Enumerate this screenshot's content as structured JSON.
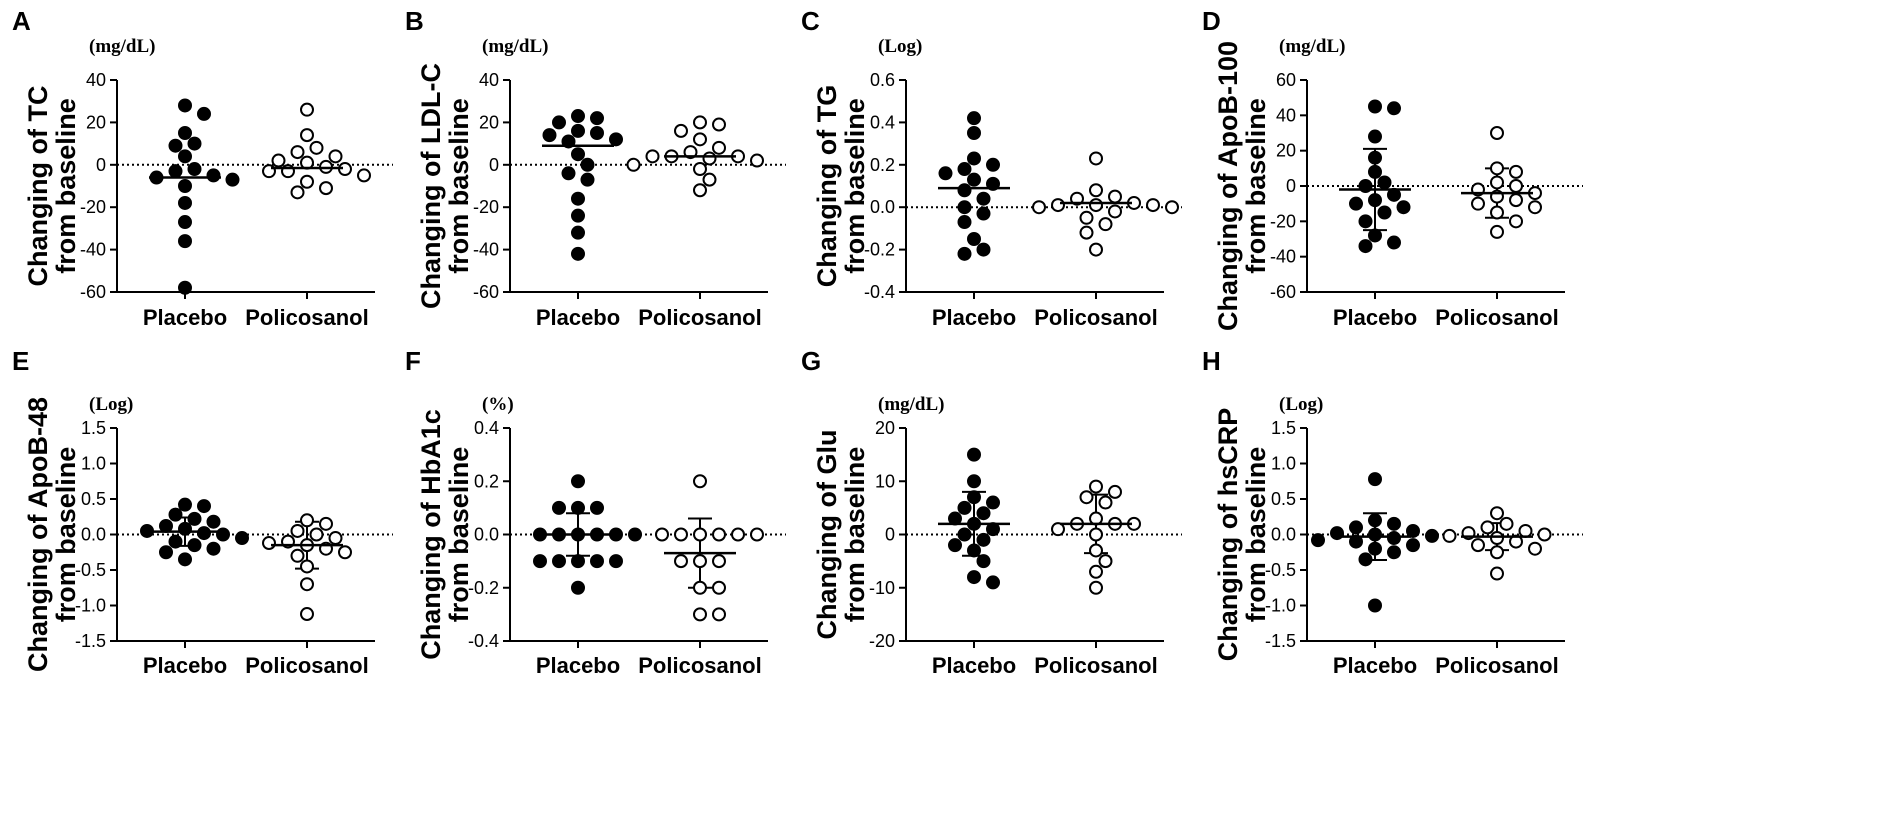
{
  "chart_data": [
    {
      "panel": "A",
      "type": "scatter",
      "unit": "(mg/dL)",
      "ylabel_line1": "Changing of TC",
      "ylabel_line2": "from baseline",
      "ylim": [
        -60,
        40
      ],
      "yticks": [
        -60,
        -40,
        -20,
        0,
        20,
        40
      ],
      "categories": [
        "Placebo",
        "Policosanol"
      ],
      "series": [
        {
          "name": "Placebo",
          "marker": "filled",
          "mean": -6,
          "sd": null,
          "values": [
            28,
            24,
            15,
            10,
            9,
            4,
            -2,
            -3,
            -5,
            -6,
            -7,
            -10,
            -18,
            -27,
            -36,
            -58
          ]
        },
        {
          "name": "Policosanol",
          "marker": "open",
          "mean": -1.5,
          "sd": null,
          "values": [
            26,
            14,
            8,
            6,
            4,
            2,
            1,
            -1,
            -2,
            -3,
            -5,
            -8,
            -11,
            -13,
            -3
          ]
        }
      ]
    },
    {
      "panel": "B",
      "type": "scatter",
      "unit": "(mg/dL)",
      "ylabel_line1": "Changing of LDL-C",
      "ylabel_line2": "from baseline",
      "ylim": [
        -60,
        40
      ],
      "yticks": [
        -60,
        -40,
        -20,
        0,
        20,
        40
      ],
      "categories": [
        "Placebo",
        "Policosanol"
      ],
      "series": [
        {
          "name": "Placebo",
          "marker": "filled",
          "mean": 9,
          "sd": null,
          "values": [
            23,
            22,
            20,
            16,
            15,
            14,
            12,
            11,
            5,
            0,
            -4,
            -7,
            -16,
            -24,
            -32,
            -42
          ]
        },
        {
          "name": "Policosanol",
          "marker": "open",
          "mean": 4,
          "sd": null,
          "values": [
            20,
            19,
            16,
            12,
            8,
            6,
            4,
            4,
            3,
            2,
            0,
            -2,
            -7,
            -12,
            4
          ]
        }
      ]
    },
    {
      "panel": "C",
      "type": "scatter",
      "unit": "(Log)",
      "ylabel_line1": "Changing of TG",
      "ylabel_line2": "from baseline",
      "ylim": [
        -0.4,
        0.6
      ],
      "yticks": [
        -0.4,
        -0.2,
        0.0,
        0.2,
        0.4,
        0.6
      ],
      "categories": [
        "Placebo",
        "Policosanol"
      ],
      "series": [
        {
          "name": "Placebo",
          "marker": "filled",
          "mean": 0.09,
          "sd": null,
          "values": [
            0.42,
            0.35,
            0.23,
            0.2,
            0.18,
            0.16,
            0.13,
            0.11,
            0.08,
            0.04,
            0.0,
            -0.03,
            -0.07,
            -0.15,
            -0.2,
            -0.22
          ]
        },
        {
          "name": "Policosanol",
          "marker": "open",
          "mean": 0.02,
          "sd": null,
          "values": [
            0.23,
            0.08,
            0.05,
            0.04,
            0.02,
            0.01,
            0.01,
            0.0,
            0.0,
            -0.02,
            -0.05,
            -0.08,
            -0.12,
            -0.2,
            0.01
          ]
        }
      ]
    },
    {
      "panel": "D",
      "type": "scatter",
      "unit": "(mg/dL)",
      "ylabel_line1": "Changing of ApoB-100",
      "ylabel_line2": "from baseline",
      "ylim": [
        -60,
        60
      ],
      "yticks": [
        -60,
        -40,
        -20,
        0,
        20,
        40,
        60
      ],
      "categories": [
        "Placebo",
        "Policosanol"
      ],
      "series": [
        {
          "name": "Placebo",
          "marker": "filled",
          "mean": -2,
          "sd": 23,
          "values": [
            45,
            44,
            28,
            16,
            8,
            2,
            0,
            -5,
            -8,
            -10,
            -12,
            -15,
            -20,
            -28,
            -32,
            -34
          ]
        },
        {
          "name": "Policosanol",
          "marker": "open",
          "mean": -4,
          "sd": 14,
          "values": [
            30,
            10,
            8,
            2,
            0,
            -2,
            -4,
            -8,
            -10,
            -12,
            -15,
            -20,
            -26,
            -6
          ]
        }
      ]
    },
    {
      "panel": "E",
      "type": "scatter",
      "unit": "(Log)",
      "ylabel_line1": "Changing of ApoB-48",
      "ylabel_line2": "from baseline",
      "ylim": [
        -1.5,
        1.5
      ],
      "yticks": [
        -1.5,
        -1.0,
        -0.5,
        0.0,
        0.5,
        1.0,
        1.5
      ],
      "categories": [
        "Placebo",
        "Policosanol"
      ],
      "series": [
        {
          "name": "Placebo",
          "marker": "filled",
          "mean": 0.04,
          "sd": 0.2,
          "values": [
            0.42,
            0.4,
            0.28,
            0.22,
            0.18,
            0.12,
            0.08,
            0.05,
            0.02,
            0.0,
            -0.05,
            -0.1,
            -0.15,
            -0.2,
            -0.25,
            -0.35
          ]
        },
        {
          "name": "Policosanol",
          "marker": "open",
          "mean": -0.15,
          "sd": 0.33,
          "values": [
            0.2,
            0.15,
            0.05,
            0.0,
            -0.05,
            -0.1,
            -0.12,
            -0.15,
            -0.2,
            -0.25,
            -0.3,
            -0.45,
            -0.7,
            -1.12
          ]
        }
      ]
    },
    {
      "panel": "F",
      "type": "scatter",
      "unit": "(%)",
      "ylabel_line1": "Changing of HbA1c",
      "ylabel_line2": "from baseline",
      "ylim": [
        -0.4,
        0.4
      ],
      "yticks": [
        -0.4,
        -0.2,
        0.0,
        0.2,
        0.4
      ],
      "categories": [
        "Placebo",
        "Policosanol"
      ],
      "series": [
        {
          "name": "Placebo",
          "marker": "filled",
          "mean": 0.0,
          "sd": 0.08,
          "values": [
            0.2,
            0.1,
            0.1,
            0.1,
            0.0,
            0.0,
            0.0,
            0.0,
            0.0,
            0.0,
            -0.1,
            -0.1,
            -0.1,
            -0.1,
            -0.1,
            -0.2
          ]
        },
        {
          "name": "Policosanol",
          "marker": "open",
          "mean": -0.07,
          "sd": 0.13,
          "values": [
            0.2,
            0.0,
            0.0,
            0.0,
            0.0,
            0.0,
            0.0,
            -0.1,
            -0.1,
            -0.1,
            -0.2,
            -0.2,
            -0.3,
            -0.3
          ]
        }
      ]
    },
    {
      "panel": "G",
      "type": "scatter",
      "unit": "(mg/dL)",
      "ylabel_line1": "Changing of Glu",
      "ylabel_line2": "from baseline",
      "ylim": [
        -20,
        20
      ],
      "yticks": [
        -20,
        -10,
        0,
        10,
        20
      ],
      "categories": [
        "Placebo",
        "Policosanol"
      ],
      "series": [
        {
          "name": "Placebo",
          "marker": "filled",
          "mean": 2,
          "sd": 6,
          "values": [
            15,
            10,
            7,
            6,
            5,
            4,
            3,
            2,
            1,
            0,
            -1,
            -2,
            -3,
            -5,
            -8,
            -9
          ]
        },
        {
          "name": "Policosanol",
          "marker": "open",
          "mean": 2,
          "sd": 5.5,
          "values": [
            9,
            8,
            7,
            6,
            3,
            2,
            2,
            2,
            1,
            0,
            -3,
            -5,
            -7,
            -10
          ]
        }
      ]
    },
    {
      "panel": "H",
      "type": "scatter",
      "unit": "(Log)",
      "ylabel_line1": "Changing of hsCRP",
      "ylabel_line2": "from baseline",
      "ylim": [
        -1.5,
        1.5
      ],
      "yticks": [
        -1.5,
        -1.0,
        -0.5,
        0.0,
        0.5,
        1.0,
        1.5
      ],
      "categories": [
        "Placebo",
        "Policosanol"
      ],
      "series": [
        {
          "name": "Placebo",
          "marker": "filled",
          "mean": -0.03,
          "sd": 0.33,
          "values": [
            0.78,
            0.2,
            0.15,
            0.1,
            0.05,
            0.02,
            0.0,
            -0.02,
            -0.05,
            -0.08,
            -0.1,
            -0.15,
            -0.2,
            -0.25,
            -0.35,
            -1.0
          ]
        },
        {
          "name": "Policosanol",
          "marker": "open",
          "mean": -0.03,
          "sd": 0.19,
          "values": [
            0.3,
            0.15,
            0.1,
            0.05,
            0.02,
            0.0,
            -0.02,
            -0.05,
            -0.1,
            -0.15,
            -0.2,
            -0.25,
            -0.55
          ]
        }
      ]
    }
  ]
}
